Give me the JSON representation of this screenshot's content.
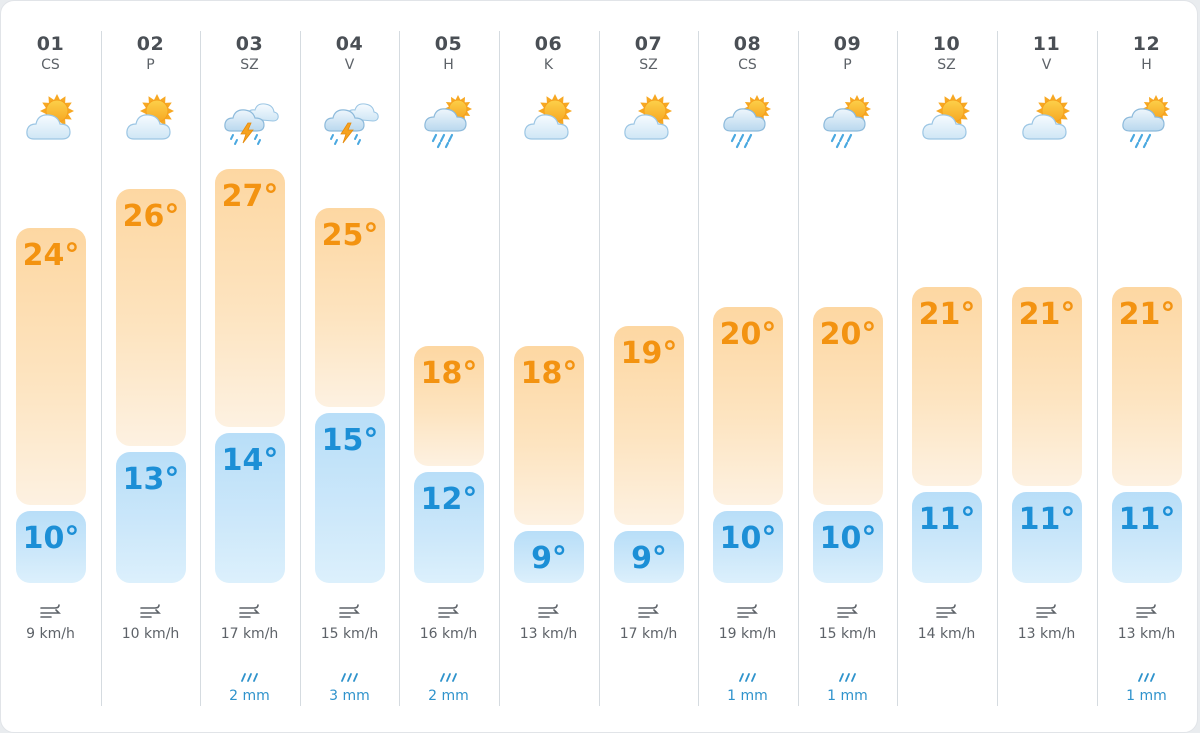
{
  "days": [
    {
      "day": "01",
      "weekday": "CS",
      "icon": "partly-cloudy-icon",
      "high": "24°",
      "low": "10°",
      "high_c": 24,
      "low_c": 10,
      "wind": "9 km/h",
      "rain": ""
    },
    {
      "day": "02",
      "weekday": "P",
      "icon": "partly-cloudy-icon",
      "high": "26°",
      "low": "13°",
      "high_c": 26,
      "low_c": 13,
      "wind": "10 km/h",
      "rain": ""
    },
    {
      "day": "03",
      "weekday": "SZ",
      "icon": "thunderstorm-icon",
      "high": "27°",
      "low": "14°",
      "high_c": 27,
      "low_c": 14,
      "wind": "17 km/h",
      "rain": "2 mm"
    },
    {
      "day": "04",
      "weekday": "V",
      "icon": "thunderstorm-icon",
      "high": "25°",
      "low": "15°",
      "high_c": 25,
      "low_c": 15,
      "wind": "15 km/h",
      "rain": "3 mm"
    },
    {
      "day": "05",
      "weekday": "H",
      "icon": "rain-icon",
      "high": "18°",
      "low": "12°",
      "high_c": 18,
      "low_c": 12,
      "wind": "16 km/h",
      "rain": "2 mm"
    },
    {
      "day": "06",
      "weekday": "K",
      "icon": "partly-cloudy-icon",
      "high": "18°",
      "low": "9°",
      "high_c": 18,
      "low_c": 9,
      "wind": "13 km/h",
      "rain": ""
    },
    {
      "day": "07",
      "weekday": "SZ",
      "icon": "partly-cloudy-icon",
      "high": "19°",
      "low": "9°",
      "high_c": 19,
      "low_c": 9,
      "wind": "17 km/h",
      "rain": ""
    },
    {
      "day": "08",
      "weekday": "CS",
      "icon": "rain-icon",
      "high": "20°",
      "low": "10°",
      "high_c": 20,
      "low_c": 10,
      "wind": "19 km/h",
      "rain": "1 mm"
    },
    {
      "day": "09",
      "weekday": "P",
      "icon": "rain-icon",
      "high": "20°",
      "low": "10°",
      "high_c": 20,
      "low_c": 10,
      "wind": "15 km/h",
      "rain": "1 mm"
    },
    {
      "day": "10",
      "weekday": "SZ",
      "icon": "partly-cloudy-icon",
      "high": "21°",
      "low": "11°",
      "high_c": 21,
      "low_c": 11,
      "wind": "14 km/h",
      "rain": ""
    },
    {
      "day": "11",
      "weekday": "V",
      "icon": "partly-cloudy-icon",
      "high": "21°",
      "low": "11°",
      "high_c": 21,
      "low_c": 11,
      "wind": "13 km/h",
      "rain": ""
    },
    {
      "day": "12",
      "weekday": "H",
      "icon": "rain-icon",
      "high": "21°",
      "low": "11°",
      "high_c": 21,
      "low_c": 11,
      "wind": "13 km/h",
      "rain": "1 mm"
    }
  ],
  "colors": {
    "high_text": "#f39311",
    "low_text": "#1c8fd6",
    "rain_text": "#2f93cc"
  }
}
